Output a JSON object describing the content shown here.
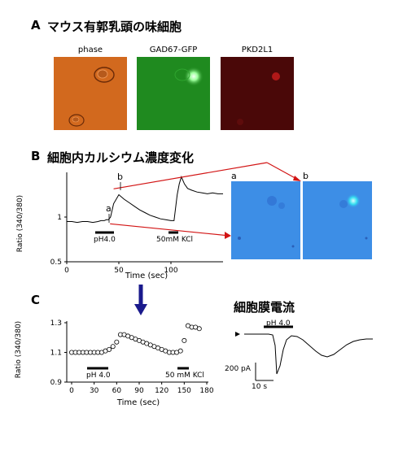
{
  "panelA": {
    "letter": "A",
    "title": "マウス有郭乳頭の味細胞",
    "images": [
      {
        "label": "phase"
      },
      {
        "label": "GAD67-GFP"
      },
      {
        "label": "PKD2L1"
      }
    ]
  },
  "panelB": {
    "letter": "B",
    "title": "細胞内カルシウム濃度変化",
    "marker_a": "a",
    "marker_b": "b",
    "stim1": "pH4.0",
    "stim2": "50mM KCl",
    "image_a_label": "a",
    "image_b_label": "b",
    "chart_data": {
      "type": "line",
      "xlabel": "Time (sec)",
      "ylabel": "Ratio (340/380)",
      "xlim": [
        0,
        150
      ],
      "ylim": [
        0.5,
        1.5
      ],
      "xticks": [
        "0",
        "50",
        "100"
      ],
      "yticks": [
        "0.5",
        "1"
      ],
      "x": [
        0,
        5,
        10,
        15,
        20,
        25,
        30,
        33,
        36,
        38,
        40,
        42,
        45,
        50,
        55,
        60,
        65,
        70,
        75,
        80,
        85,
        90,
        95,
        100,
        103,
        106,
        108,
        110,
        113,
        116,
        120,
        125,
        130,
        135,
        140,
        145,
        150
      ],
      "y": [
        0.95,
        0.95,
        0.94,
        0.95,
        0.95,
        0.94,
        0.95,
        0.96,
        0.96,
        0.97,
        0.97,
        1.0,
        1.15,
        1.25,
        1.2,
        1.16,
        1.12,
        1.08,
        1.05,
        1.02,
        1.0,
        0.98,
        0.97,
        0.96,
        0.96,
        1.25,
        1.37,
        1.45,
        1.37,
        1.32,
        1.3,
        1.28,
        1.27,
        1.26,
        1.27,
        1.26,
        1.26
      ]
    }
  },
  "panelC": {
    "letter": "C",
    "stim1": "pH 4.0",
    "stim2": "50 mM KCl",
    "chart_data": {
      "type": "scatter",
      "xlabel": "Time (sec)",
      "ylabel": "Ratio (340/380)",
      "xlim": [
        0,
        180
      ],
      "ylim": [
        0.9,
        1.3
      ],
      "xticks": [
        "0",
        "30",
        "60",
        "90",
        "120",
        "150",
        "180"
      ],
      "yticks": [
        "0.9",
        "1.1",
        "1.3"
      ],
      "x": [
        0,
        5,
        10,
        15,
        20,
        25,
        30,
        35,
        40,
        45,
        50,
        55,
        60,
        65,
        70,
        75,
        80,
        85,
        90,
        95,
        100,
        105,
        110,
        115,
        120,
        125,
        130,
        135,
        140,
        145,
        150,
        155,
        160,
        165,
        170
      ],
      "y": [
        1.1,
        1.1,
        1.1,
        1.1,
        1.1,
        1.1,
        1.1,
        1.1,
        1.1,
        1.11,
        1.12,
        1.14,
        1.17,
        1.22,
        1.22,
        1.21,
        1.2,
        1.19,
        1.18,
        1.17,
        1.16,
        1.15,
        1.14,
        1.13,
        1.12,
        1.11,
        1.1,
        1.1,
        1.1,
        1.11,
        1.18,
        1.28,
        1.27,
        1.27,
        1.26
      ]
    }
  },
  "panelD": {
    "title": "細胞膜電流",
    "stim": "pH 4.0",
    "scale_current": "200 pA",
    "scale_time": "10 s"
  },
  "arrow_color": "#1a1a8c",
  "line_color": "#d21414"
}
